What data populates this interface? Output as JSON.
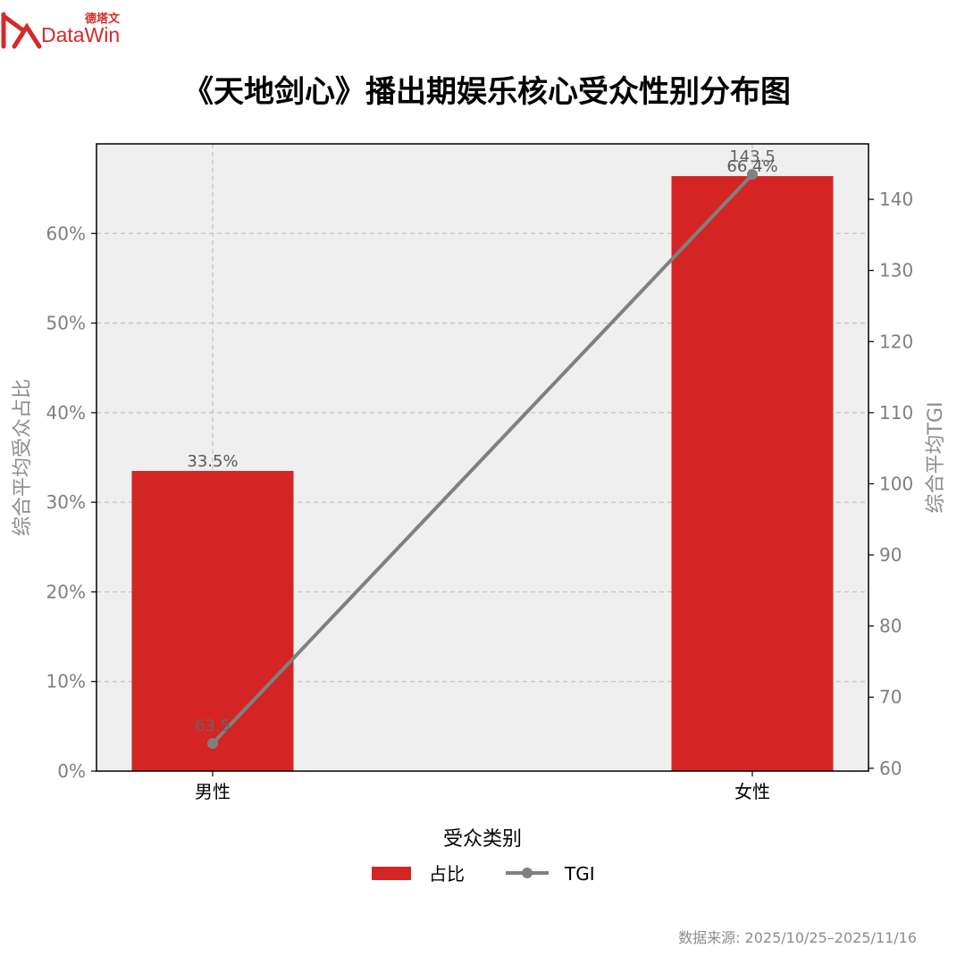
{
  "logo": {
    "cn": "德塔文",
    "en": "DataWin"
  },
  "source": "数据来源: 2025/10/25–2025/11/16",
  "colors": {
    "bar": "#d42424",
    "line": "#808080",
    "plot_bg": "#efefef",
    "axis_text": "#7f7f7f"
  },
  "chart_data": {
    "type": "bar",
    "title": "《天地剑心》播出期娱乐核心受众性别分布图",
    "categories": [
      "男性",
      "女性"
    ],
    "xlabel": "受众类别",
    "ylabel": "综合平均受众占比",
    "y2label": "综合平均TGI",
    "ylim": [
      0,
      70
    ],
    "y2lim": [
      59.6,
      147.8
    ],
    "yticks": [
      "0%",
      "10%",
      "20%",
      "30%",
      "40%",
      "50%",
      "60%"
    ],
    "y2ticks": [
      "60",
      "70",
      "80",
      "90",
      "100",
      "110",
      "120",
      "130",
      "140"
    ],
    "grid": true,
    "legend": "bottom-center",
    "series": [
      {
        "name": "占比",
        "type": "bar",
        "values": [
          33.5,
          66.4
        ],
        "labels": [
          "33.5%",
          "66.4%"
        ]
      },
      {
        "name": "TGI",
        "type": "line",
        "axis": "right",
        "values": [
          63.5,
          143.5
        ],
        "labels": [
          "63.5",
          "143.5"
        ]
      }
    ]
  }
}
